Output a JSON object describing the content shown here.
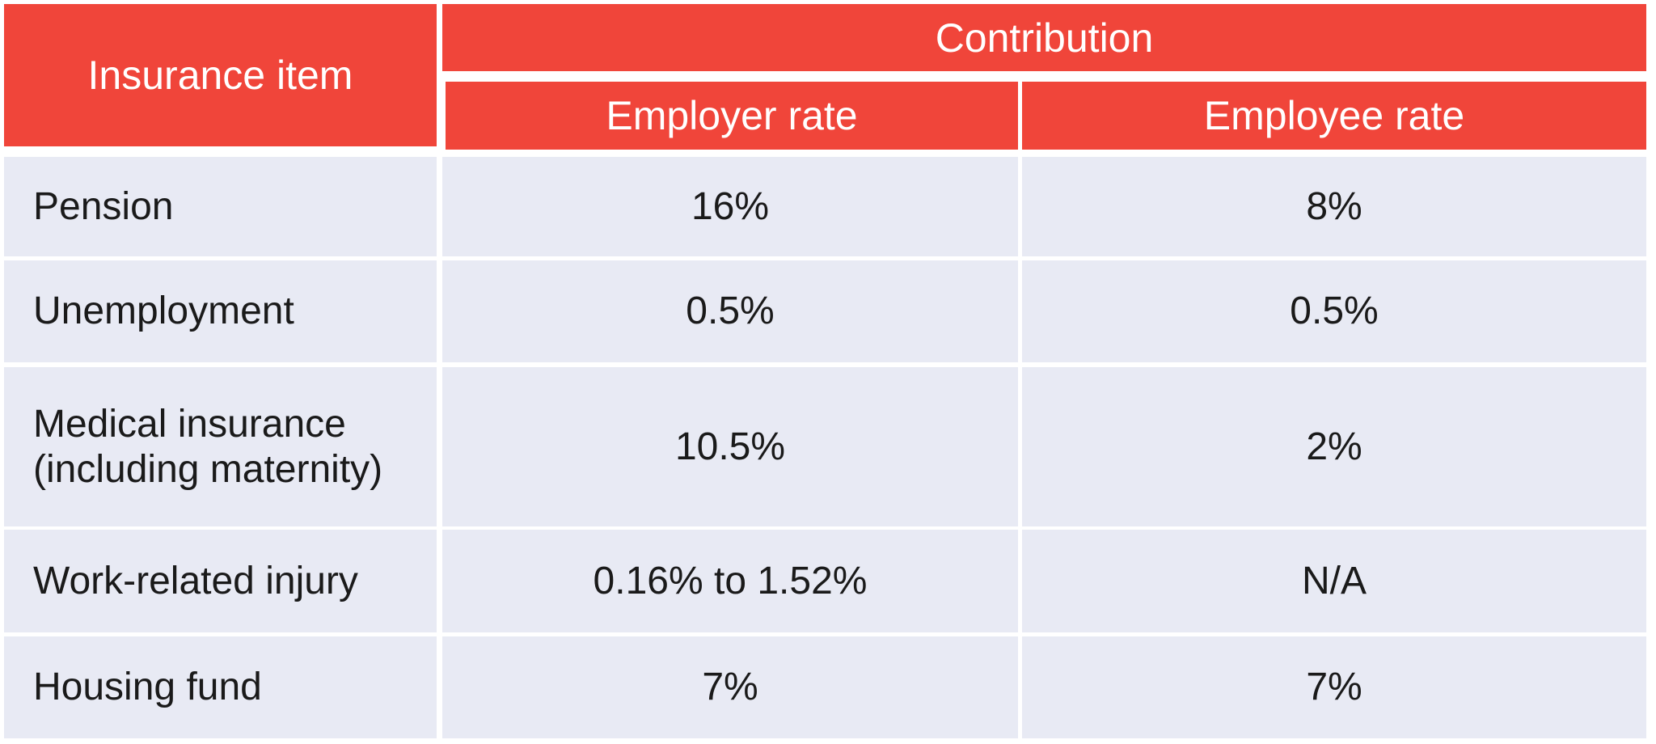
{
  "colors": {
    "header": "#f0453a",
    "body": "#e8eaf4"
  },
  "header": {
    "insurance_item": "Insurance item",
    "contribution": "Contribution",
    "employer_rate": "Employer rate",
    "employee_rate": "Employee rate"
  },
  "rows": [
    {
      "item": "Pension",
      "employer": "16%",
      "employee": "8%"
    },
    {
      "item": "Unemployment",
      "employer": "0.5%",
      "employee": "0.5%"
    },
    {
      "item": "Medical insurance (including maternity)",
      "employer": "10.5%",
      "employee": "2%"
    },
    {
      "item": "Work-related injury",
      "employer": "0.16% to 1.52%",
      "employee": "N/A"
    },
    {
      "item": "Housing fund",
      "employer": "7%",
      "employee": "7%"
    }
  ]
}
